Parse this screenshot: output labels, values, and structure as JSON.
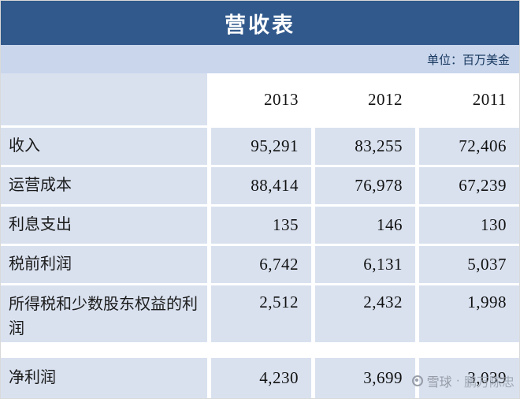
{
  "title": "营收表",
  "unit_label": "单位：百万美金",
  "chart_data": {
    "type": "table",
    "title": "营收表",
    "unit": "百万美金",
    "columns": [
      "2013",
      "2012",
      "2011"
    ],
    "rows": [
      {
        "label": "收入",
        "values": [
          "95,291",
          "83,255",
          "72,406"
        ]
      },
      {
        "label": "运营成本",
        "values": [
          "88,414",
          "76,978",
          "67,239"
        ]
      },
      {
        "label": "利息支出",
        "values": [
          "135",
          "146",
          "130"
        ]
      },
      {
        "label": "税前利润",
        "values": [
          "6,742",
          "6,131",
          "5,037"
        ]
      },
      {
        "label": "所得税和少数股东权益的利润",
        "values": [
          "2,512",
          "2,432",
          "1,998"
        ]
      },
      {
        "label": "净利润",
        "values": [
          "4,230",
          "3,699",
          "3,039"
        ]
      }
    ]
  },
  "watermark": {
    "site": "雪球",
    "separator": "·",
    "user": "鹏万陈忠"
  },
  "colors": {
    "title_bar": "#31598C",
    "unit_strip": "#C9D6EC",
    "row_band": "#D9E1EF",
    "title_text": "#FFFFFF",
    "unit_text": "#17375E"
  }
}
